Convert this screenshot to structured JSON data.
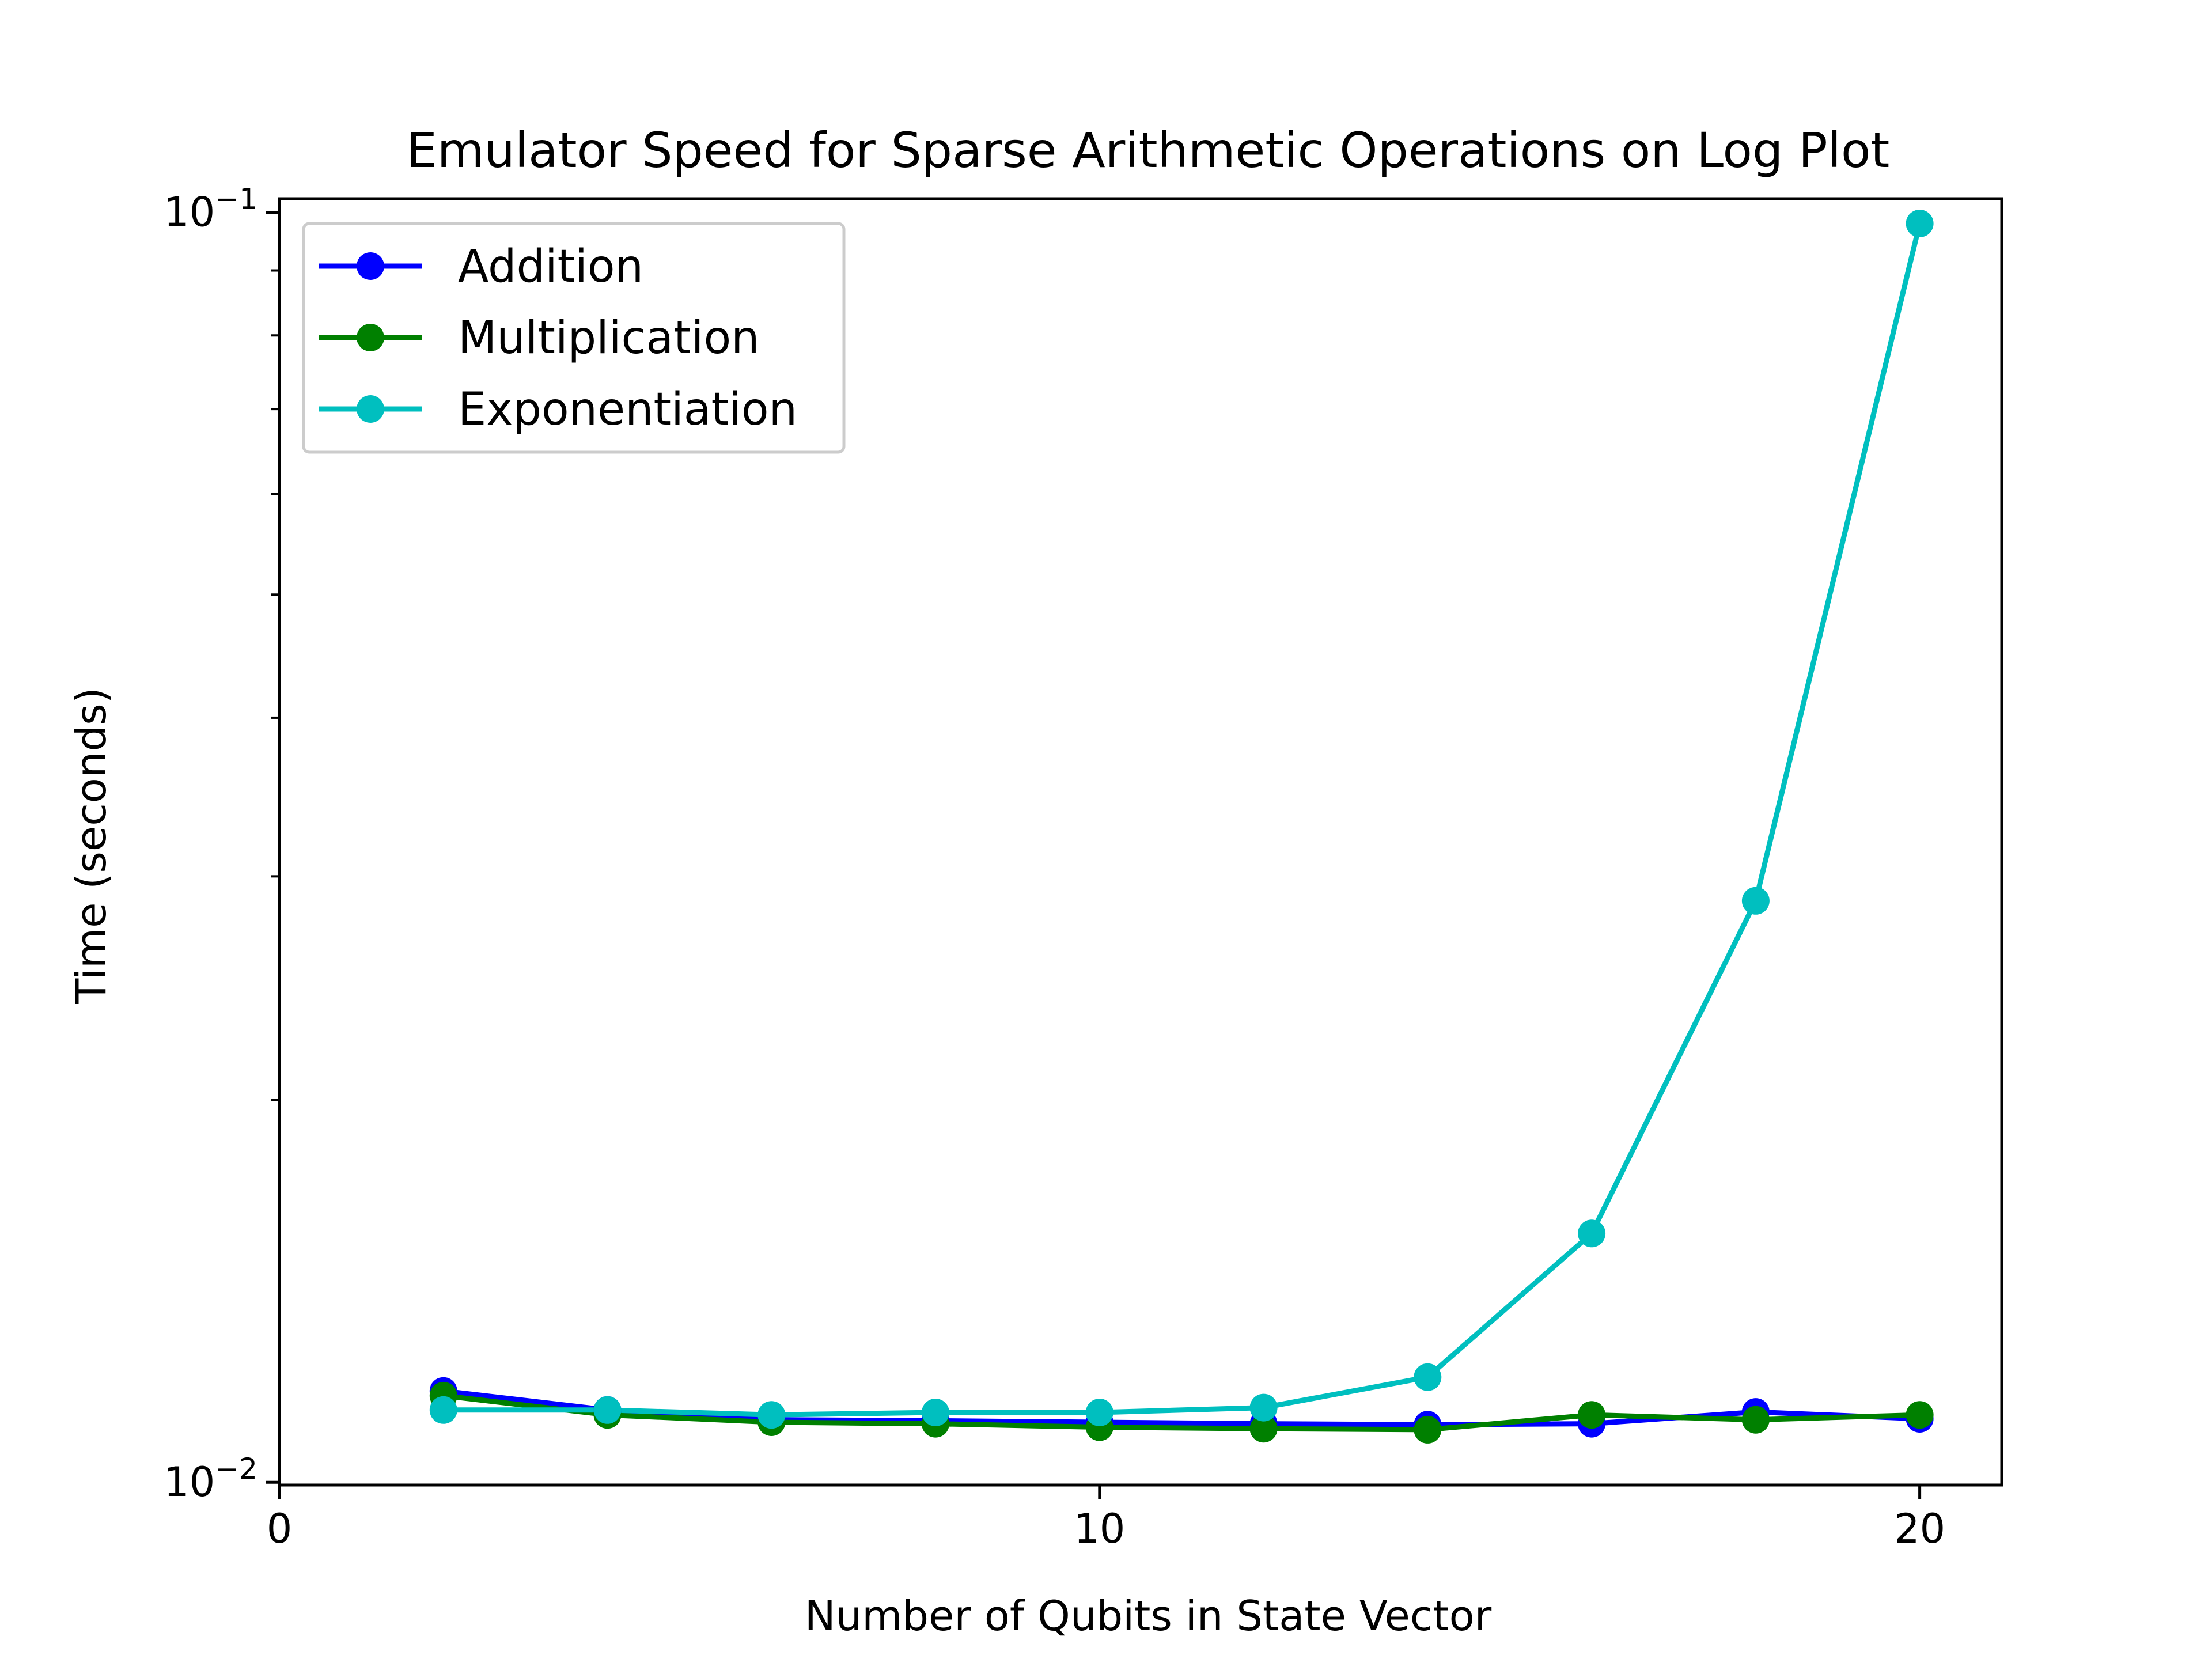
{
  "chart_data": {
    "type": "line",
    "title": "Emulator Speed for Sparse Arithmetic Operations on Log Plot",
    "xlabel": "Number of Qubits in State Vector",
    "ylabel": "Time (seconds)",
    "xlim": [
      0,
      21
    ],
    "ylim": [
      0.00995,
      0.1025
    ],
    "yscale": "log",
    "x_ticks": [
      0,
      10,
      20
    ],
    "y_major_ticks": [
      {
        "value": 0.01,
        "base": "10",
        "exponent": "−2"
      },
      {
        "value": 0.1,
        "base": "10",
        "exponent": "−1"
      }
    ],
    "y_minor_ticks": [
      0.02,
      0.03,
      0.04,
      0.05,
      0.06,
      0.07,
      0.08,
      0.09
    ],
    "legend_position": "upper-left",
    "grid": false,
    "x": [
      2,
      4,
      6,
      8,
      10,
      12,
      14,
      16,
      18,
      20
    ],
    "series": [
      {
        "name": "Addition",
        "color": "#0000ff",
        "values": [
          0.0118,
          0.0114,
          0.0112,
          0.01118,
          0.01115,
          0.01112,
          0.0111,
          0.01112,
          0.01136,
          0.01122
        ]
      },
      {
        "name": "Multiplication",
        "color": "#008000",
        "values": [
          0.0117,
          0.0113,
          0.01115,
          0.01112,
          0.01105,
          0.01102,
          0.011,
          0.0113,
          0.0112,
          0.0113
        ]
      },
      {
        "name": "Exponentiation",
        "color": "#00bfbf",
        "values": [
          0.0114,
          0.0114,
          0.0113,
          0.01135,
          0.01135,
          0.01145,
          0.0121,
          0.0157,
          0.0287,
          0.098
        ]
      }
    ]
  }
}
